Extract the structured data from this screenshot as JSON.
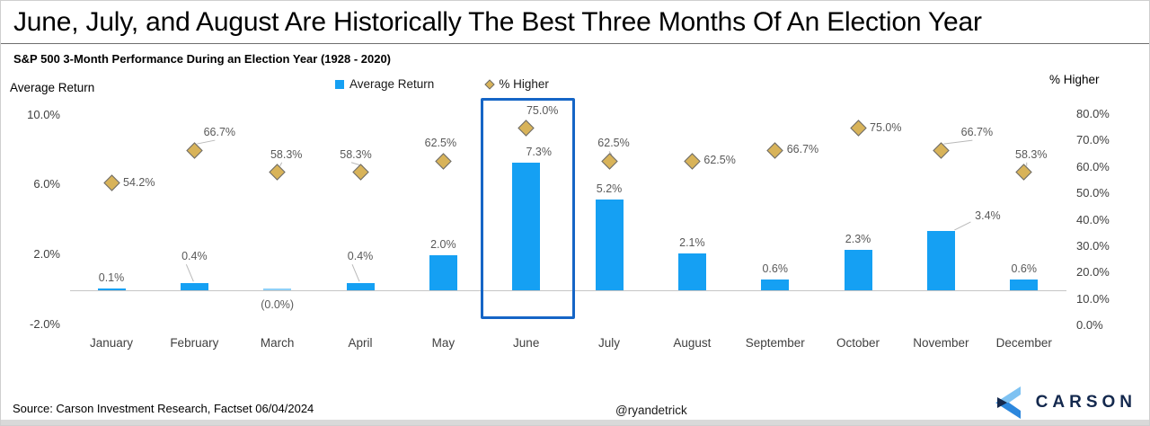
{
  "header": {
    "title": "June, July, and August Are Historically The Best Three Months Of An Election Year",
    "subtitle": "S&P 500 3-Month Performance During an Election Year (1928 - 2020)"
  },
  "footer": {
    "source": "Source: Carson Investment Research, Factset 06/04/2024",
    "handle": "@ryandetrick",
    "brand": "CARSON"
  },
  "colors": {
    "bar": "#15A0F3",
    "diamond_fill": "#D8B359",
    "diamond_stroke": "#6b6b6b",
    "highlight_box": "#1565C6",
    "logo_navy": "#14294E",
    "logo_light_blue": "#7EC2F2",
    "logo_mid_blue": "#2C87DD"
  },
  "chart_data": {
    "type": "bar",
    "title": "June, July, and August Are Historically The Best Three Months Of An Election Year",
    "subtitle": "S&P 500 3-Month Performance During an Election Year (1928 - 2020)",
    "legend_position": "top",
    "categories": [
      "January",
      "February",
      "March",
      "April",
      "May",
      "June",
      "July",
      "August",
      "September",
      "October",
      "November",
      "December"
    ],
    "series": [
      {
        "name": "Average Return",
        "type": "bar",
        "axis": "left",
        "values": [
          0.1,
          0.4,
          0.0,
          0.4,
          2.0,
          7.3,
          5.2,
          2.1,
          0.6,
          2.3,
          3.4,
          0.6
        ],
        "labels": [
          {
            "text": "0.1%",
            "pos": "above"
          },
          {
            "text": "0.4%",
            "pos": "above-far",
            "leader": true
          },
          {
            "text": "(0.0%)",
            "pos": "below"
          },
          {
            "text": "0.4%",
            "pos": "above-far",
            "leader": true
          },
          {
            "text": "2.0%",
            "pos": "above"
          },
          {
            "text": "7.3%",
            "pos": "above",
            "dx": 14
          },
          {
            "text": "5.2%",
            "pos": "above"
          },
          {
            "text": "2.1%",
            "pos": "above"
          },
          {
            "text": "0.6%",
            "pos": "above"
          },
          {
            "text": "2.3%",
            "pos": "above"
          },
          {
            "text": "3.4%",
            "pos": "above-right",
            "leader": true
          },
          {
            "text": "0.6%",
            "pos": "above"
          }
        ]
      },
      {
        "name": "% Higher",
        "type": "scatter",
        "marker": "diamond",
        "axis": "right",
        "values": [
          54.2,
          66.7,
          58.3,
          58.3,
          62.5,
          75.0,
          62.5,
          62.5,
          66.7,
          75.0,
          66.7,
          58.3
        ],
        "labels": [
          {
            "text": "54.2%",
            "pos": "right"
          },
          {
            "text": "66.7%",
            "pos": "above",
            "dx": 28,
            "leader": true
          },
          {
            "text": "58.3%",
            "pos": "above",
            "dx": 10,
            "leader": true
          },
          {
            "text": "58.3%",
            "pos": "above",
            "dx": -5,
            "leader": true
          },
          {
            "text": "62.5%",
            "pos": "above",
            "dx": -3
          },
          {
            "text": "75.0%",
            "pos": "above",
            "dx": 18
          },
          {
            "text": "62.5%",
            "pos": "above",
            "dx": 5,
            "leader": true
          },
          {
            "text": "62.5%",
            "pos": "right"
          },
          {
            "text": "66.7%",
            "pos": "right"
          },
          {
            "text": "75.0%",
            "pos": "right"
          },
          {
            "text": "66.7%",
            "pos": "above",
            "dx": 40,
            "leader": true
          },
          {
            "text": "58.3%",
            "pos": "above",
            "dx": 8,
            "leader": true
          }
        ]
      }
    ],
    "left_axis": {
      "label": "Average Return",
      "tick_labels": [
        "10.0%",
        "6.0%",
        "2.0%",
        "-2.0%"
      ],
      "tick_values": [
        10,
        6,
        2,
        -2
      ],
      "range": [
        -2,
        10
      ]
    },
    "right_axis": {
      "label": "% Higher",
      "tick_labels": [
        "80.0%",
        "70.0%",
        "60.0%",
        "50.0%",
        "40.0%",
        "30.0%",
        "20.0%",
        "10.0%",
        "0.0%"
      ],
      "tick_values": [
        80,
        70,
        60,
        50,
        40,
        30,
        20,
        10,
        0
      ],
      "range": [
        0,
        80
      ]
    },
    "highlight": {
      "category": "June",
      "index": 5
    },
    "grid": false
  }
}
